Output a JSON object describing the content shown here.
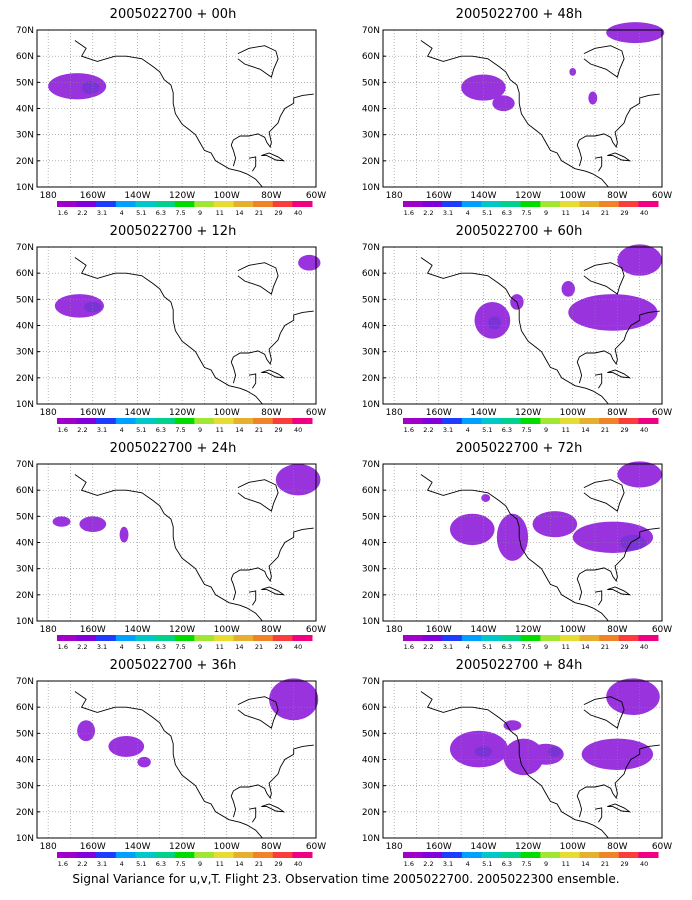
{
  "colorbar": {
    "labels": [
      "1.6",
      "2.2",
      "3.1",
      "4",
      "5.1",
      "6.3",
      "7.5",
      "9",
      "11",
      "14",
      "21",
      "29",
      "40"
    ],
    "colors": [
      "#a000c8",
      "#8200dc",
      "#1e3cff",
      "#00a0ff",
      "#00c8c8",
      "#00d28c",
      "#00dc00",
      "#a0e632",
      "#e6dc32",
      "#e6af2d",
      "#f08228",
      "#fa3c3c",
      "#f00082"
    ]
  },
  "axes": {
    "x_ticks": [
      "180",
      "160W",
      "140W",
      "120W",
      "100W",
      "80W",
      "60W"
    ],
    "y_ticks": [
      "10N",
      "20N",
      "30N",
      "40N",
      "50N",
      "60N",
      "70N"
    ],
    "lon_range": [
      -185,
      -60
    ],
    "lat_range": [
      10,
      70
    ]
  },
  "caption": "Signal Variance for u,v,T. Flight 23. Observation time 2005022700. 2005022300 ensemble.",
  "chart_data": [
    {
      "type": "contour-map",
      "title": "2005022700 + 00h",
      "blobs": [
        {
          "lon": -167,
          "lat": 48.5,
          "rlon": 13,
          "rlat": 5,
          "level": 1
        },
        {
          "lon": -161,
          "lat": 48,
          "rlon": 4,
          "rlat": 2.5,
          "level": 2
        }
      ]
    },
    {
      "type": "contour-map",
      "title": "2005022700 + 12h",
      "blobs": [
        {
          "lon": -166,
          "lat": 47.5,
          "rlon": 11,
          "rlat": 4.5,
          "level": 1
        },
        {
          "lon": -160,
          "lat": 47,
          "rlon": 4,
          "rlat": 2,
          "level": 2
        },
        {
          "lon": -63,
          "lat": 64,
          "rlon": 5,
          "rlat": 3,
          "level": 1
        }
      ]
    },
    {
      "type": "contour-map",
      "title": "2005022700 + 24h",
      "blobs": [
        {
          "lon": -174,
          "lat": 48,
          "rlon": 4,
          "rlat": 2,
          "level": 1
        },
        {
          "lon": -160,
          "lat": 47,
          "rlon": 6,
          "rlat": 3,
          "level": 1
        },
        {
          "lon": -146,
          "lat": 43,
          "rlon": 2,
          "rlat": 3,
          "level": 1
        },
        {
          "lon": -68,
          "lat": 64,
          "rlon": 10,
          "rlat": 6,
          "level": 1
        }
      ]
    },
    {
      "type": "contour-map",
      "title": "2005022700 + 36h",
      "blobs": [
        {
          "lon": -163,
          "lat": 51,
          "rlon": 4,
          "rlat": 4,
          "level": 1
        },
        {
          "lon": -145,
          "lat": 45,
          "rlon": 8,
          "rlat": 4,
          "level": 1
        },
        {
          "lon": -137,
          "lat": 39,
          "rlon": 3,
          "rlat": 2,
          "level": 1
        },
        {
          "lon": -70,
          "lat": 63,
          "rlon": 11,
          "rlat": 8,
          "level": 1
        }
      ]
    },
    {
      "type": "contour-map",
      "title": "2005022700 + 48h",
      "blobs": [
        {
          "lon": -140,
          "lat": 48,
          "rlon": 10,
          "rlat": 5,
          "level": 1
        },
        {
          "lon": -131,
          "lat": 42,
          "rlon": 5,
          "rlat": 3,
          "level": 1
        },
        {
          "lon": -100,
          "lat": 54,
          "rlon": 1.5,
          "rlat": 1.5,
          "level": 1
        },
        {
          "lon": -91,
          "lat": 44,
          "rlon": 2,
          "rlat": 2.5,
          "level": 1
        },
        {
          "lon": -72,
          "lat": 69,
          "rlon": 13,
          "rlat": 4,
          "level": 1
        }
      ]
    },
    {
      "type": "contour-map",
      "title": "2005022700 + 60h",
      "blobs": [
        {
          "lon": -136,
          "lat": 42,
          "rlon": 8,
          "rlat": 7,
          "level": 1
        },
        {
          "lon": -135,
          "lat": 41,
          "rlon": 3,
          "rlat": 2.5,
          "level": 2
        },
        {
          "lon": -125,
          "lat": 49,
          "rlon": 3,
          "rlat": 3,
          "level": 1
        },
        {
          "lon": -102,
          "lat": 54,
          "rlon": 3,
          "rlat": 3,
          "level": 1
        },
        {
          "lon": -82,
          "lat": 45,
          "rlon": 20,
          "rlat": 7,
          "level": 1
        },
        {
          "lon": -70,
          "lat": 65,
          "rlon": 10,
          "rlat": 6,
          "level": 1
        }
      ]
    },
    {
      "type": "contour-map",
      "title": "2005022700 + 72h",
      "blobs": [
        {
          "lon": -145,
          "lat": 45,
          "rlon": 10,
          "rlat": 6,
          "level": 1
        },
        {
          "lon": -127,
          "lat": 42,
          "rlon": 7,
          "rlat": 9,
          "level": 1
        },
        {
          "lon": -108,
          "lat": 47,
          "rlon": 10,
          "rlat": 5,
          "level": 1
        },
        {
          "lon": -82,
          "lat": 42,
          "rlon": 18,
          "rlat": 6,
          "level": 1
        },
        {
          "lon": -73,
          "lat": 40,
          "rlon": 6,
          "rlat": 3,
          "level": 2
        },
        {
          "lon": -139,
          "lat": 57,
          "rlon": 2,
          "rlat": 1.5,
          "level": 1
        },
        {
          "lon": -70,
          "lat": 66,
          "rlon": 10,
          "rlat": 5,
          "level": 1
        }
      ]
    },
    {
      "type": "contour-map",
      "title": "2005022700 + 84h",
      "blobs": [
        {
          "lon": -142,
          "lat": 44,
          "rlon": 13,
          "rlat": 7,
          "level": 1
        },
        {
          "lon": -140,
          "lat": 43,
          "rlon": 4,
          "rlat": 2,
          "level": 2
        },
        {
          "lon": -122,
          "lat": 41,
          "rlon": 9,
          "rlat": 7,
          "level": 1
        },
        {
          "lon": -112,
          "lat": 42,
          "rlon": 8,
          "rlat": 4,
          "level": 1
        },
        {
          "lon": -108,
          "lat": 43,
          "rlon": 3,
          "rlat": 2,
          "level": 2
        },
        {
          "lon": -80,
          "lat": 42,
          "rlon": 16,
          "rlat": 6,
          "level": 1
        },
        {
          "lon": -127,
          "lat": 53,
          "rlon": 4,
          "rlat": 2,
          "level": 1
        },
        {
          "lon": -73,
          "lat": 64,
          "rlon": 12,
          "rlat": 7,
          "level": 1
        }
      ]
    }
  ]
}
